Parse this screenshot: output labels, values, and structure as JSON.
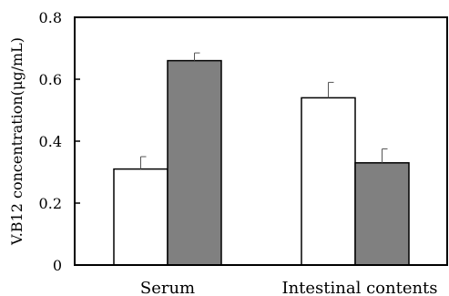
{
  "chart_data": {
    "type": "bar",
    "title": "",
    "xlabel": "",
    "ylabel": "V.B12 concentration(μg/mL)",
    "categories": [
      "Serum",
      "Intestinal contents"
    ],
    "series": [
      {
        "color": "#ffffff",
        "values": [
          0.31,
          0.54
        ],
        "errors": [
          0.04,
          0.05
        ]
      },
      {
        "color": "#808080",
        "values": [
          0.66,
          0.33
        ],
        "errors": [
          0.025,
          0.045
        ]
      }
    ],
    "ylim": [
      0,
      0.8
    ],
    "yticks": [
      0,
      0.2,
      0.4,
      0.6,
      0.8
    ],
    "ytick_labels": [
      "0",
      "0.2",
      "0.4",
      "0.6",
      "0.8"
    ],
    "grid": false,
    "legend": "none"
  }
}
